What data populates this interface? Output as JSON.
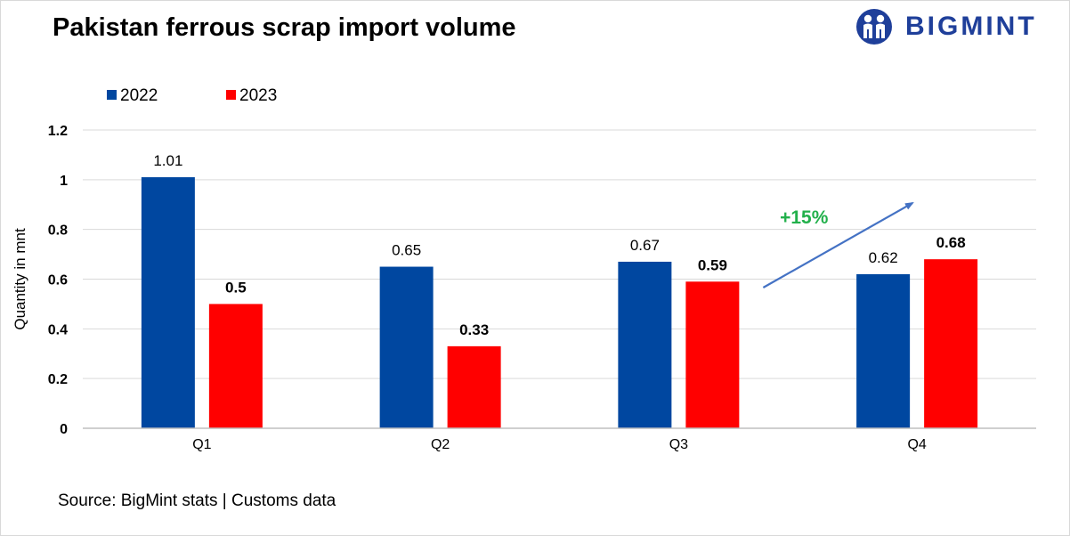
{
  "title": "Pakistan ferrous scrap import volume",
  "logo": {
    "text": "BIGMINT",
    "icon": "bigmint-logo-icon",
    "color": "#1f3f9a"
  },
  "source": "Source: BigMint stats | Customs data",
  "chart_data": {
    "type": "bar",
    "categories": [
      "Q1",
      "Q2",
      "Q3",
      "Q4"
    ],
    "series": [
      {
        "name": "2022",
        "color": "#0047a0",
        "values": [
          1.01,
          0.65,
          0.67,
          0.62
        ],
        "labels": [
          "1.01",
          "0.65",
          "0.67",
          "0.62"
        ],
        "label_bold": false
      },
      {
        "name": "2023",
        "color": "#ff0000",
        "values": [
          0.5,
          0.33,
          0.59,
          0.68
        ],
        "labels": [
          "0.5",
          "0.33",
          "0.59",
          "0.68"
        ],
        "label_bold": true
      }
    ],
    "ylabel": "Quantity in mnt",
    "xlabel": "",
    "ylim": [
      0,
      1.2
    ],
    "yticks": [
      0,
      0.2,
      0.4,
      0.6,
      0.8,
      1,
      1.2
    ],
    "ytick_labels": [
      "0",
      "0.2",
      "0.4",
      "0.6",
      "0.8",
      "1",
      "1.2"
    ],
    "grid": true,
    "legend": "top-left",
    "annotation": {
      "text": "+15%",
      "color": "#22b04b",
      "arrow_color": "#4472c4",
      "from": "Q3",
      "to": "Q4"
    }
  }
}
